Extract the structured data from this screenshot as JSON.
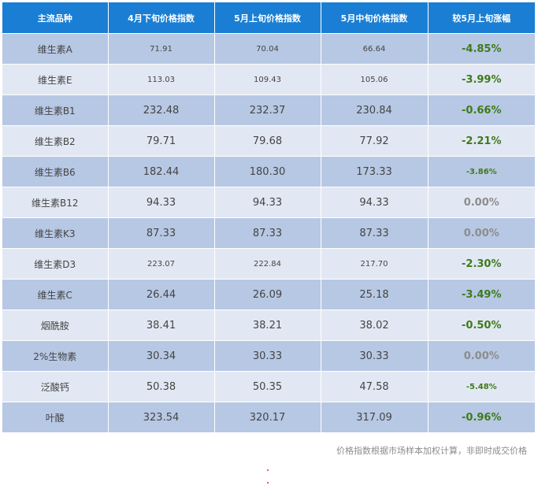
{
  "table": {
    "headers": [
      "主流品种",
      "4月下旬价格指数",
      "5月上旬价格指数",
      "5月中旬价格指数",
      "较5月上旬涨幅"
    ],
    "rows": [
      {
        "name": "维生素A",
        "apr_late": "71.91",
        "may_early": "70.04",
        "may_mid": "66.64",
        "change": "-4.85%"
      },
      {
        "name": "维生素E",
        "apr_late": "113.03",
        "may_early": "109.43",
        "may_mid": "105.06",
        "change": "-3.99%"
      },
      {
        "name": "维生素B1",
        "apr_late": "232.48",
        "may_early": "232.37",
        "may_mid": "230.84",
        "change": "-0.66%"
      },
      {
        "name": "维生素B2",
        "apr_late": "79.71",
        "may_early": "79.68",
        "may_mid": "77.92",
        "change": "-2.21%"
      },
      {
        "name": "维生素B6",
        "apr_late": "182.44",
        "may_early": "180.30",
        "may_mid": "173.33",
        "change": "-3.86%"
      },
      {
        "name": "维生素B12",
        "apr_late": "94.33",
        "may_early": "94.33",
        "may_mid": "94.33",
        "change": "0.00%"
      },
      {
        "name": "维生素K3",
        "apr_late": "87.33",
        "may_early": "87.33",
        "may_mid": "87.33",
        "change": "0.00%"
      },
      {
        "name": "维生素D3",
        "apr_late": "223.07",
        "may_early": "222.84",
        "may_mid": "217.70",
        "change": "-2.30%"
      },
      {
        "name": "维生素C",
        "apr_late": "26.44",
        "may_early": "26.09",
        "may_mid": "25.18",
        "change": "-3.49%"
      },
      {
        "name": "烟酰胺",
        "apr_late": "38.41",
        "may_early": "38.21",
        "may_mid": "38.02",
        "change": "-0.50%"
      },
      {
        "name": "2%生物素",
        "apr_late": "30.34",
        "may_early": "30.33",
        "may_mid": "30.33",
        "change": "0.00%"
      },
      {
        "name": "泛酸钙",
        "apr_late": "50.38",
        "may_early": "50.35",
        "may_mid": "47.58",
        "change": "-5.48%"
      },
      {
        "name": "叶酸",
        "apr_late": "323.54",
        "may_early": "320.17",
        "may_mid": "317.09",
        "change": "-0.96%"
      }
    ]
  },
  "footnote": "价格指数根据市场样本加权计算，非即时成交价格",
  "colors": {
    "header_bg": "#1a7fd4",
    "row_dark": "#b7c8e4",
    "row_light": "#e2e8f3",
    "change_negative": "#3e7a19",
    "change_zero": "#8c8c8c"
  }
}
